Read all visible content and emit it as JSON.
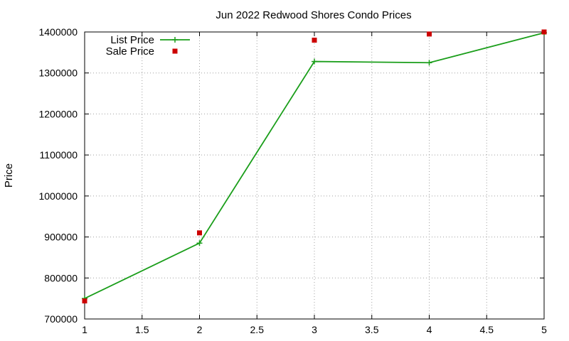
{
  "chart_data": {
    "type": "line",
    "title": "Jun 2022 Redwood Shores Condo Prices",
    "xlabel": "",
    "ylabel": "Price",
    "xlim": [
      1,
      5
    ],
    "ylim": [
      700000,
      1400000
    ],
    "xticks": [
      "1",
      "1.5",
      "2",
      "2.5",
      "3",
      "3.5",
      "4",
      "4.5",
      "5"
    ],
    "yticks": [
      "700000",
      "800000",
      "900000",
      "1000000",
      "1100000",
      "1200000",
      "1300000",
      "1400000"
    ],
    "grid": true,
    "legend_position": "top-left",
    "series": [
      {
        "name": "List Price",
        "style": "line+plus-markers",
        "color": "#1a9e1a",
        "x": [
          1,
          2,
          3,
          4,
          5
        ],
        "y": [
          750000,
          885000,
          1328000,
          1325000,
          1398000
        ]
      },
      {
        "name": "Sale Price",
        "style": "square-markers",
        "color": "#cc0000",
        "x": [
          1,
          2,
          3,
          4,
          5
        ],
        "y": [
          744000,
          910000,
          1380000,
          1395000,
          1400000
        ]
      }
    ]
  }
}
